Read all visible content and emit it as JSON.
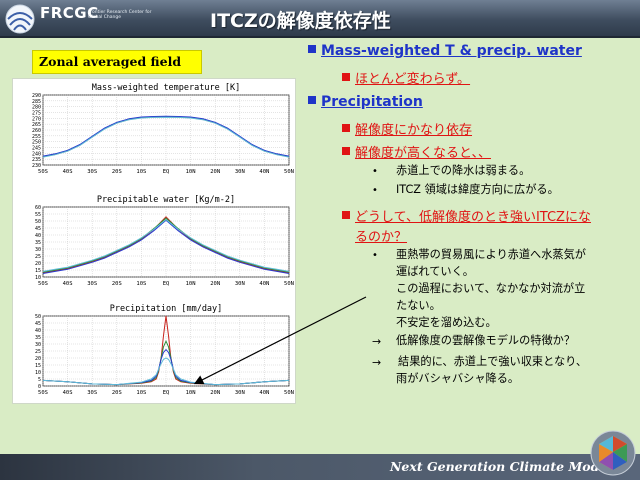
{
  "header": {
    "logo_text": "FRCGC",
    "logo_sub": "Frontier Research Center for Global Change",
    "title": "ITCZの解像度依存性"
  },
  "label": "Zonal averaged field",
  "chart_data": [
    {
      "type": "line",
      "title": "Mass-weighted temperature [K]",
      "x_ticks": [
        "50S",
        "40S",
        "30S",
        "20S",
        "10S",
        "EQ",
        "10N",
        "20N",
        "30N",
        "40N",
        "50N"
      ],
      "y_ticks": [
        230,
        235,
        240,
        245,
        250,
        255,
        260,
        265,
        270,
        275,
        280,
        285,
        290
      ],
      "ylim": [
        230,
        290
      ],
      "x": [
        -50,
        -45,
        -40,
        -35,
        -30,
        -25,
        -20,
        -15,
        -10,
        -5,
        0,
        5,
        10,
        15,
        20,
        25,
        30,
        35,
        40,
        45,
        50
      ],
      "series": [
        {
          "color": "#c8241e",
          "values": [
            237,
            239,
            242,
            247,
            254,
            261,
            266,
            269,
            270.5,
            271,
            271.2,
            271,
            270.5,
            269,
            266,
            261,
            254,
            247,
            242,
            239,
            237
          ]
        },
        {
          "color": "#2f8d3a",
          "values": [
            237.3,
            239.3,
            242.3,
            247.3,
            254.3,
            261.3,
            266.3,
            269.3,
            270.8,
            271.3,
            271.5,
            271.3,
            270.8,
            269.3,
            266.3,
            261.3,
            254.3,
            247.3,
            242.3,
            239.3,
            237.3
          ]
        },
        {
          "color": "#2a3bd0",
          "values": [
            237.6,
            239.6,
            242.6,
            247.6,
            254.6,
            261.6,
            266.6,
            269.6,
            271.1,
            271.6,
            271.8,
            271.6,
            271.1,
            269.6,
            266.6,
            261.6,
            254.6,
            247.6,
            242.6,
            239.6,
            237.6
          ]
        },
        {
          "color": "#5fbcd8",
          "values": [
            236.8,
            238.8,
            241.8,
            246.8,
            253.8,
            260.8,
            265.8,
            268.8,
            270.3,
            270.8,
            271,
            270.8,
            270.3,
            268.8,
            265.8,
            260.8,
            253.8,
            246.8,
            241.8,
            238.8,
            236.8
          ]
        }
      ]
    },
    {
      "type": "line",
      "title": "Precipitable water [Kg/m-2]",
      "x_ticks": [
        "50S",
        "40S",
        "30S",
        "20S",
        "10S",
        "EQ",
        "10N",
        "20N",
        "30N",
        "40N",
        "50N"
      ],
      "y_ticks": [
        10,
        15,
        20,
        25,
        30,
        35,
        40,
        45,
        50,
        55,
        60
      ],
      "ylim": [
        10,
        60
      ],
      "x": [
        -50,
        -45,
        -40,
        -35,
        -30,
        -25,
        -20,
        -15,
        -10,
        -5,
        0,
        5,
        10,
        15,
        20,
        25,
        30,
        35,
        40,
        45,
        50
      ],
      "series": [
        {
          "color": "#c8241e",
          "values": [
            13,
            14.5,
            16,
            18.5,
            21,
            24,
            28,
            32,
            37,
            44,
            53,
            44,
            37,
            32,
            28,
            24,
            21,
            18.5,
            16,
            14.5,
            13
          ]
        },
        {
          "color": "#2f8d3a",
          "values": [
            13.5,
            15,
            16.5,
            19,
            21.5,
            24.5,
            28.5,
            32.5,
            37.5,
            44.5,
            52,
            44.5,
            37.5,
            32.5,
            28.5,
            24.5,
            21.5,
            19,
            16.5,
            15,
            13.5
          ]
        },
        {
          "color": "#2a3bd0",
          "values": [
            12.5,
            14,
            15.5,
            18,
            20.5,
            23.5,
            27.5,
            31.5,
            36.5,
            43,
            50.5,
            43,
            36.5,
            31.5,
            27.5,
            23.5,
            20.5,
            18,
            15.5,
            14,
            12.5
          ]
        },
        {
          "color": "#5fbcd8",
          "values": [
            14,
            15.5,
            17,
            19.5,
            22,
            25,
            29,
            33,
            38,
            44,
            51,
            44,
            38,
            33,
            29,
            25,
            22,
            19.5,
            17,
            15.5,
            14
          ]
        }
      ]
    },
    {
      "type": "line",
      "title": "Precipitation [mm/day]",
      "x_ticks": [
        "50S",
        "40S",
        "30S",
        "20S",
        "10S",
        "EQ",
        "10N",
        "20N",
        "30N",
        "40N",
        "50N"
      ],
      "y_ticks": [
        0,
        5,
        10,
        15,
        20,
        25,
        30,
        35,
        40,
        45,
        50
      ],
      "ylim": [
        0,
        50
      ],
      "x": [
        -50,
        -40,
        -30,
        -20,
        -10,
        -6,
        -4,
        -3,
        -2,
        -1,
        0,
        1,
        2,
        3,
        4,
        6,
        10,
        20,
        30,
        40,
        50
      ],
      "series": [
        {
          "color": "#c8241e",
          "values": [
            4,
            3,
            1.5,
            1,
            2,
            3,
            5,
            10,
            20,
            36,
            50,
            36,
            20,
            10,
            5,
            3,
            2,
            1,
            1.5,
            3,
            4
          ]
        },
        {
          "color": "#2f8d3a",
          "values": [
            4,
            3,
            1.5,
            1,
            2.2,
            3.5,
            6,
            11,
            20,
            28,
            32,
            28,
            20,
            11,
            6,
            3.5,
            2.2,
            1,
            1.5,
            3,
            4
          ]
        },
        {
          "color": "#2a3bd0",
          "values": [
            4,
            3,
            1.5,
            1,
            2.5,
            4,
            7,
            12,
            19,
            24,
            26,
            24,
            19,
            12,
            7,
            4,
            2.5,
            1,
            1.5,
            3,
            4
          ]
        },
        {
          "color": "#5fbcd8",
          "values": [
            4,
            3,
            1.5,
            1,
            2.8,
            5,
            8,
            12,
            16,
            19,
            20,
            19,
            16,
            12,
            8,
            5,
            2.8,
            1,
            1.5,
            3,
            4
          ]
        }
      ]
    }
  ],
  "bullets": {
    "b1": "Mass-weighted T & precip. water",
    "b1_sub": "ほとんど変わらず。",
    "b2": "Precipitation",
    "b2_sub1": "解像度にかなり依存",
    "b2_sub2": "解像度が高くなると、、",
    "dot1": "赤道上での降水は弱まる。",
    "dot2": "ITCZ 領域は緯度方向に広がる。",
    "b2_sub3_line1": "どうして、低解像度のとき強いITCZにな",
    "b2_sub3_line2": "るのか？",
    "dot3_line1": "亜熱帯の貿易風により赤道へ水蒸気が",
    "dot3_line2": "運ばれていく。",
    "text_line3": "この過程において、なかなか対流が立",
    "text_line4": "たない。",
    "text_line5": "不安定を溜め込む。",
    "arrow1": "低解像度の雲解像モデルの特徴か？",
    "arrow2_line1": "結果的に、赤道上で強い収束となり、",
    "arrow2_line2": "雨がバシャバシャ降る。"
  },
  "footer": {
    "text": "Next Generation Climate Model"
  }
}
